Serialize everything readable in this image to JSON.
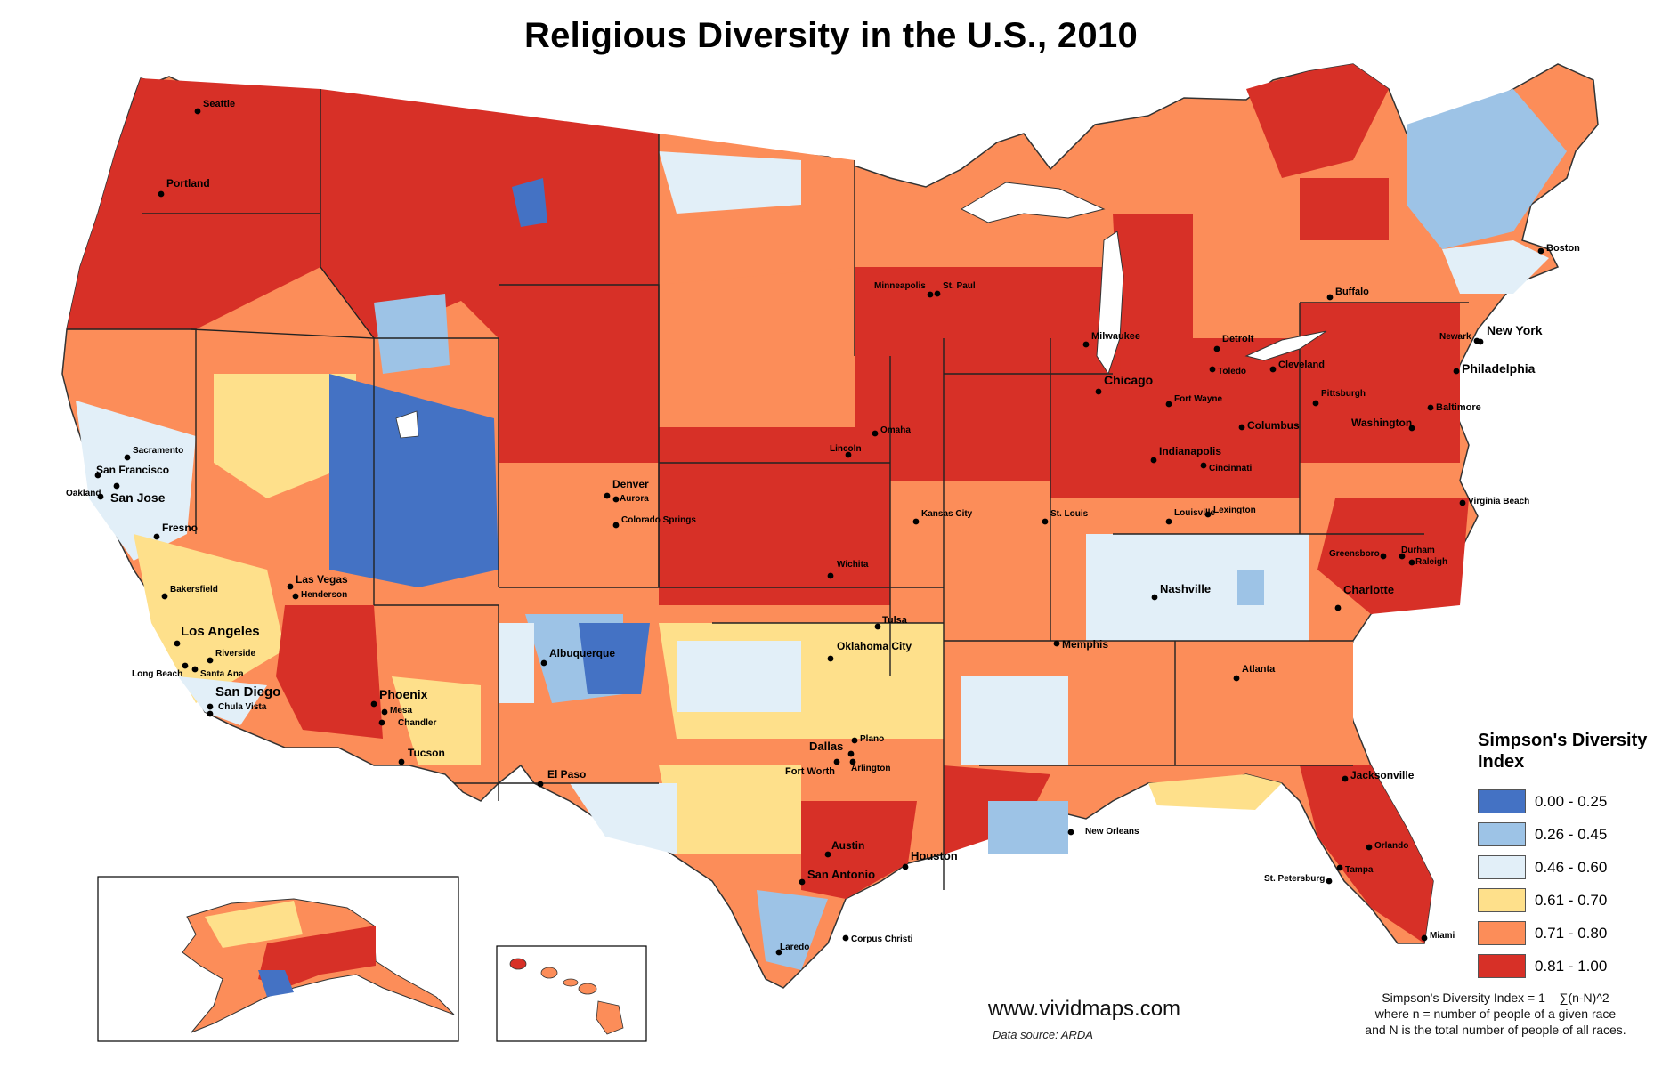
{
  "title": "Religious Diversity in the U.S., 2010",
  "legend": {
    "title_line1": "Simpson's Diversity",
    "title_line2": "Index",
    "classes": [
      {
        "label": "0.00 - 0.25",
        "color": "#4472c4"
      },
      {
        "label": "0.26 - 0.45",
        "color": "#9dc3e6"
      },
      {
        "label": "0.46 - 0.60",
        "color": "#e2eff8"
      },
      {
        "label": "0.61 - 0.70",
        "color": "#fee08b"
      },
      {
        "label": "0.71 - 0.80",
        "color": "#fc8d59"
      },
      {
        "label": "0.81 - 1.00",
        "color": "#d73027"
      }
    ]
  },
  "cities": {
    "seattle": "Seattle",
    "portland": "Portland",
    "sacramento": "Sacramento",
    "san_francisco": "San Francisco",
    "oakland": "Oakland",
    "san_jose": "San Jose",
    "fresno": "Fresno",
    "bakersfield": "Bakersfield",
    "los_angeles": "Los Angeles",
    "riverside": "Riverside",
    "long_beach": "Long Beach",
    "santa_ana": "Santa Ana",
    "san_diego": "San Diego",
    "chula_vista": "Chula Vista",
    "las_vegas": "Las Vegas",
    "henderson": "Henderson",
    "phoenix": "Phoenix",
    "mesa": "Mesa",
    "chandler": "Chandler",
    "tucson": "Tucson",
    "albuquerque": "Albuquerque",
    "el_paso": "El Paso",
    "denver": "Denver",
    "aurora": "Aurora",
    "colorado_springs": "Colorado Springs",
    "minneapolis": "Minneapolis",
    "st_paul": "St. Paul",
    "omaha": "Omaha",
    "lincoln": "Lincoln",
    "kansas_city": "Kansas City",
    "wichita": "Wichita",
    "tulsa": "Tulsa",
    "oklahoma_city": "Oklahoma City",
    "dallas": "Dallas",
    "plano": "Plano",
    "fort_worth": "Fort Worth",
    "arlington": "Arlington",
    "austin": "Austin",
    "san_antonio": "San Antonio",
    "houston": "Houston",
    "laredo": "Laredo",
    "corpus_christi": "Corpus Christi",
    "milwaukee": "Milwaukee",
    "chicago": "Chicago",
    "st_louis": "St. Louis",
    "detroit": "Detroit",
    "toledo": "Toledo",
    "fort_wayne": "Fort Wayne",
    "indianapolis": "Indianapolis",
    "louisville": "Louisville",
    "lexington": "Lexington",
    "cincinnati": "Cincinnati",
    "columbus": "Columbus",
    "cleveland": "Cleveland",
    "pittsburgh": "Pittsburgh",
    "buffalo": "Buffalo",
    "boston": "Boston",
    "newark": "Newark",
    "new_york": "New York",
    "philadelphia": "Philadelphia",
    "baltimore": "Baltimore",
    "washington": "Washington",
    "virginia_beach": "Virginia Beach",
    "greensboro": "Greensboro",
    "durham": "Durham",
    "raleigh": "Raleigh",
    "charlotte": "Charlotte",
    "nashville": "Nashville",
    "memphis": "Memphis",
    "atlanta": "Atlanta",
    "new_orleans": "New Orleans",
    "jacksonville": "Jacksonville",
    "orlando": "Orlando",
    "tampa": "Tampa",
    "st_petersburg": "St. Petersburg",
    "miami": "Miami"
  },
  "website": "www.vividmaps.com",
  "source": "Data source: ARDA",
  "formula": {
    "line1": "Simpson's Diversity Index = 1 – ∑(n-N)^2",
    "line2": "where n = number of people of a given race",
    "line3": "and N is the total number of people of all races."
  }
}
